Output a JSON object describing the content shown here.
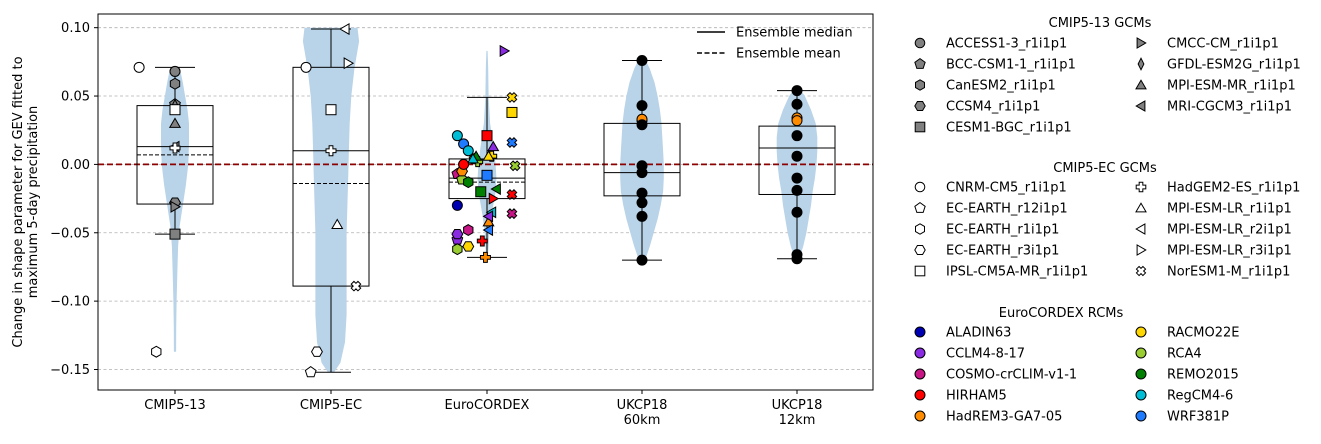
{
  "chart_data": {
    "type": "box-violin",
    "ylabel": "Change in shape parameter for GEV fitted to maximum 5-day precipitation",
    "ylabel_lines": [
      "Change in shape parameter for GEV fitted to",
      "maximum 5-day precipitation"
    ],
    "ylim": [
      -0.165,
      0.11
    ],
    "yticks": [
      -0.15,
      -0.1,
      -0.05,
      0.0,
      0.05,
      0.1
    ],
    "ytick_labels": [
      "−0.15",
      "−0.10",
      "−0.05",
      "0.00",
      "0.05",
      "0.10"
    ],
    "grid": "horizontal-dashed",
    "reference_line": {
      "y": 0.0,
      "color": "#8b0000",
      "style": "dashed"
    },
    "violin_color": "#b9d3e8",
    "ensemble_legend": {
      "position": "top-right",
      "entries": [
        {
          "label": "Ensemble median",
          "style": "solid"
        },
        {
          "label": "Ensemble mean",
          "style": "dashed"
        }
      ]
    },
    "groups": [
      {
        "category": "CMIP5-13",
        "label_lines": [
          "CMIP5-13"
        ],
        "box": {
          "q1": -0.029,
          "median": 0.013,
          "q3": 0.043,
          "mean": 0.007,
          "whisker_low": -0.051,
          "whisker_high": 0.071
        },
        "violin": [
          [
            0.071,
            0.03
          ],
          [
            0.06,
            0.05
          ],
          [
            0.05,
            0.065
          ],
          [
            0.04,
            0.08
          ],
          [
            0.03,
            0.09
          ],
          [
            0.015,
            0.09
          ],
          [
            0.0,
            0.085
          ],
          [
            -0.015,
            0.07
          ],
          [
            -0.03,
            0.05
          ],
          [
            -0.045,
            0.03
          ],
          [
            -0.06,
            0.02
          ],
          [
            -0.08,
            0.015
          ],
          [
            -0.1,
            0.01
          ],
          [
            -0.12,
            0.008
          ],
          [
            -0.137,
            0.007
          ]
        ],
        "points": [
          {
            "model": "ACCESS1-3_r1i1p1",
            "y": 0.068,
            "dx": 0.0
          },
          {
            "model": "BCC-CSM1-1_r1i1p1",
            "y": 0.044,
            "dx": 0.0
          },
          {
            "model": "CanESM2_r1i1p1",
            "y": 0.059,
            "dx": 0.0
          },
          {
            "model": "CCSM4_r1i1p1",
            "y": -0.028,
            "dx": 0.0
          },
          {
            "model": "CESM1-BGC_r1i1p1",
            "y": -0.051,
            "dx": 0.0
          },
          {
            "model": "CMCC-CM_r1i1p1",
            "y": -0.031,
            "dx": 0.0
          },
          {
            "model": "GFDL-ESM2G_r1i1p1",
            "y": 0.043,
            "dx": 0.0
          },
          {
            "model": "MPI-ESM-MR_r1i1p1",
            "y": 0.03,
            "dx": 0.0
          },
          {
            "model": "MRI-CGCM3_r1i1p1",
            "y": 0.013,
            "dx": 0.0
          },
          {
            "model": "CNRM-CM5_r1i1p1",
            "y": 0.071,
            "dx": -0.23
          },
          {
            "model": "EC-EARTH_r1i1p1",
            "y": -0.137,
            "dx": -0.12
          },
          {
            "model": "IPSL-CM5A-MR_r1i1p1",
            "y": 0.04,
            "dx": 0.0
          },
          {
            "model": "HadGEM2-ES_r1i1p1",
            "y": 0.012,
            "dx": 0.0
          }
        ]
      },
      {
        "category": "CMIP5-EC",
        "label_lines": [
          "CMIP5-EC"
        ],
        "box": {
          "q1": -0.089,
          "median": 0.01,
          "q3": 0.071,
          "mean": -0.014,
          "whisker_low": -0.152,
          "whisker_high": 0.099
        },
        "violin": [
          [
            0.1,
            0.17
          ],
          [
            0.09,
            0.18
          ],
          [
            0.07,
            0.15
          ],
          [
            0.05,
            0.13
          ],
          [
            0.03,
            0.12
          ],
          [
            0.01,
            0.115
          ],
          [
            -0.01,
            0.11
          ],
          [
            -0.03,
            0.105
          ],
          [
            -0.05,
            0.1
          ],
          [
            -0.07,
            0.1
          ],
          [
            -0.09,
            0.1
          ],
          [
            -0.11,
            0.1
          ],
          [
            -0.13,
            0.09
          ],
          [
            -0.145,
            0.06
          ],
          [
            -0.152,
            0.02
          ]
        ],
        "points": [
          {
            "model": "CNRM-CM5_r1i1p1",
            "y": 0.071,
            "dx": -0.16
          },
          {
            "model": "EC-EARTH_r12i1p1",
            "y": -0.152,
            "dx": -0.13
          },
          {
            "model": "EC-EARTH_r3i1p1",
            "y": -0.137,
            "dx": -0.09
          },
          {
            "model": "IPSL-CM5A-MR_r1i1p1",
            "y": 0.04,
            "dx": 0.0
          },
          {
            "model": "HadGEM2-ES_r1i1p1",
            "y": 0.01,
            "dx": 0.0
          },
          {
            "model": "MPI-ESM-LR_r1i1p1",
            "y": -0.044,
            "dx": 0.04
          },
          {
            "model": "MPI-ESM-LR_r2i1p1",
            "y": 0.099,
            "dx": 0.09
          },
          {
            "model": "MPI-ESM-LR_r3i1p1",
            "y": 0.074,
            "dx": 0.11
          },
          {
            "model": "NorESM1-M_r1i1p1",
            "y": -0.089,
            "dx": 0.16
          }
        ]
      },
      {
        "category": "EuroCORDEX",
        "label_lines": [
          "EuroCORDEX"
        ],
        "box": {
          "q1": -0.025,
          "median": -0.01,
          "q3": 0.004,
          "mean": -0.013,
          "whisker_low": -0.068,
          "whisker_high": 0.049
        },
        "violin": [
          [
            0.083,
            0.004
          ],
          [
            0.07,
            0.008
          ],
          [
            0.05,
            0.01
          ],
          [
            0.03,
            0.02
          ],
          [
            0.01,
            0.045
          ],
          [
            0.0,
            0.055
          ],
          [
            -0.01,
            0.06
          ],
          [
            -0.02,
            0.055
          ],
          [
            -0.03,
            0.04
          ],
          [
            -0.04,
            0.025
          ],
          [
            -0.05,
            0.015
          ],
          [
            -0.06,
            0.01
          ],
          [
            -0.068,
            0.005
          ]
        ],
        "points": [
          {
            "rcm": "ALADIN63",
            "gcm": "CNRM-CM5_r1i1p1",
            "y": -0.03,
            "dx": -0.19
          },
          {
            "rcm": "RegCM4-6",
            "gcm": "CNRM-CM5_r1i1p1",
            "y": 0.021,
            "dx": -0.19
          },
          {
            "rcm": "WRF381P",
            "gcm": "CNRM-CM5_r1i1p1",
            "y": 0.015,
            "dx": -0.15
          },
          {
            "rcm": "RegCM4-6",
            "gcm": "CNRM-CM5_r1i1p1",
            "y": 0.01,
            "dx": -0.12
          },
          {
            "rcm": "COSMO-crCLIM-v1-1",
            "gcm": "EC-EARTH_r12i1p1",
            "y": -0.007,
            "dx": -0.19
          },
          {
            "rcm": "RCA4",
            "gcm": "EC-EARTH_r12i1p1",
            "y": -0.011,
            "dx": -0.16
          },
          {
            "rcm": "RCMO22E",
            "gcm": "EC-EARTH_r12i1p1",
            "y": 0.004,
            "dx": -0.08
          },
          {
            "rcm": "REMO2015",
            "gcm": "EC-EARTH_r1i1p1",
            "y": -0.013,
            "dx": -0.12
          },
          {
            "rcm": "HadREM3-GA7-05",
            "gcm": "EC-EARTH_r3i1p1",
            "y": -0.005,
            "dx": -0.16
          },
          {
            "rcm": "CCLM4-8-17",
            "gcm": "EC-EARTH_r12i1p1",
            "y": -0.055,
            "dx": -0.19
          },
          {
            "rcm": "CCLM4-8-17",
            "gcm": "EC-EARTH_r3i1p1",
            "y": -0.051,
            "dx": -0.19
          },
          {
            "rcm": "COSMO-crCLIM-v1-1",
            "gcm": "EC-EARTH_r1i1p1",
            "y": -0.048,
            "dx": -0.12
          },
          {
            "rcm": "RCA4",
            "gcm": "EC-EARTH_r1i1p1",
            "y": -0.062,
            "dx": -0.19
          },
          {
            "rcm": "RCMO22E",
            "gcm": "EC-EARTH_r3i1p1",
            "y": -0.06,
            "dx": -0.12
          },
          {
            "rcm": "HIRHAM5",
            "gcm": "HadGEM2-ES_r1i1p1",
            "y": -0.056,
            "dx": -0.03
          },
          {
            "rcm": "HadREM3-GA7-05",
            "gcm": "HadGEM2-ES_r1i1p1",
            "y": -0.068,
            "dx": -0.01
          },
          {
            "rcm": "REMO2015",
            "gcm": "IPSL-CM5A-MR_r1i1p1",
            "y": -0.02,
            "dx": -0.04
          },
          {
            "rcm": "HIRHAM5",
            "gcm": "IPSL-CM5A-MR_r1i1p1",
            "y": 0.021,
            "dx": 0.0
          },
          {
            "rcm": "WRF381P",
            "gcm": "IPSL-CM5A-MR_r1i1p1",
            "y": -0.008,
            "dx": 0.0
          },
          {
            "rcm": "RCMO22E",
            "gcm": "HadGEM2-ES_r1i1p1",
            "y": 0.006,
            "dx": 0.03
          },
          {
            "rcm": "RCA4",
            "gcm": "HadGEM2-ES_r1i1p1",
            "y": 0.002,
            "dx": -0.06
          },
          {
            "rcm": "REMO2015",
            "gcm": "MPI-ESM-LR_r1i1p1",
            "y": 0.006,
            "dx": -0.07
          },
          {
            "rcm": "RegCM4-6",
            "gcm": "MPI-ESM-LR_r1i1p1",
            "y": 0.004,
            "dx": -0.09
          },
          {
            "rcm": "CCLM4-8-17",
            "gcm": "MPI-ESM-LR_r1i1p1",
            "y": 0.013,
            "dx": 0.04
          },
          {
            "rcm": "RCMO22E",
            "gcm": "MPI-ESM-LR_r1i1p1",
            "y": 0.006,
            "dx": 0.01
          },
          {
            "rcm": "HadREM3-GA7-05",
            "gcm": "MPI-ESM-LR_r1i1p1",
            "y": -0.042,
            "dx": 0.01
          },
          {
            "rcm": "REMO2015",
            "gcm": "MPI-ESM-LR_r2i1p1",
            "y": -0.018,
            "dx": 0.06
          },
          {
            "rcm": "RegCM4-6",
            "gcm": "MPI-ESM-LR_r2i1p1",
            "y": -0.035,
            "dx": 0.03
          },
          {
            "rcm": "CCLM4-8-17",
            "gcm": "MPI-ESM-LR_r2i1p1",
            "y": -0.038,
            "dx": 0.01
          },
          {
            "rcm": "WRF381P",
            "gcm": "MPI-ESM-LR_r2i1p1",
            "y": -0.048,
            "dx": 0.01
          },
          {
            "rcm": "HIRHAM5",
            "gcm": "MPI-ESM-LR_r3i1p1",
            "y": -0.025,
            "dx": 0.04
          },
          {
            "rcm": "CCLM4-8-17",
            "gcm": "MPI-ESM-LR_r3i1p1",
            "y": 0.083,
            "dx": 0.11
          },
          {
            "rcm": "RCMO22E",
            "gcm": "NorESM1-M_r1i1p1",
            "y": 0.049,
            "dx": 0.16
          },
          {
            "rcm": "RCMO22E",
            "gcm": "IPSL-CM5A-MR_r1i1p1",
            "y": 0.038,
            "dx": 0.16
          },
          {
            "rcm": "WRF381P",
            "gcm": "NorESM1-M_r1i1p1",
            "y": 0.016,
            "dx": 0.16
          },
          {
            "rcm": "RCA4",
            "gcm": "NorESM1-M_r1i1p1",
            "y": -0.001,
            "dx": 0.18
          },
          {
            "rcm": "HIRHAM5",
            "gcm": "NorESM1-M_r1i1p1",
            "y": -0.022,
            "dx": 0.16
          },
          {
            "rcm": "COSMO-crCLIM-v1-1",
            "gcm": "NorESM1-M_r1i1p1",
            "y": -0.036,
            "dx": 0.16
          },
          {
            "rcm": "HIRHAM5",
            "gcm": "CNRM-CM5_r1i1p1",
            "y": 0.0,
            "dx": -0.15
          }
        ]
      },
      {
        "category": "UKCP18 60km",
        "label_lines": [
          "UKCP18",
          "60km"
        ],
        "box": {
          "q1": -0.023,
          "median": -0.006,
          "q3": 0.03,
          "whisker_low": -0.07,
          "whisker_high": 0.076
        },
        "violin": [
          [
            0.077,
            0.02
          ],
          [
            0.07,
            0.05
          ],
          [
            0.06,
            0.08
          ],
          [
            0.05,
            0.1
          ],
          [
            0.04,
            0.115
          ],
          [
            0.03,
            0.125
          ],
          [
            0.02,
            0.13
          ],
          [
            0.01,
            0.135
          ],
          [
            0.0,
            0.14
          ],
          [
            -0.01,
            0.14
          ],
          [
            -0.02,
            0.135
          ],
          [
            -0.03,
            0.12
          ],
          [
            -0.04,
            0.1
          ],
          [
            -0.05,
            0.075
          ],
          [
            -0.06,
            0.05
          ],
          [
            -0.07,
            0.02
          ]
        ],
        "points": [
          {
            "rcm": "",
            "y": 0.076
          },
          {
            "rcm": "",
            "y": 0.043
          },
          {
            "rcm": "",
            "y": 0.032
          },
          {
            "rcm": "HadREM3-GA7-05",
            "y": 0.033
          },
          {
            "rcm": "",
            "y": 0.029
          },
          {
            "rcm": "",
            "y": -0.001
          },
          {
            "rcm": "",
            "y": -0.006
          },
          {
            "rcm": "",
            "y": -0.021
          },
          {
            "rcm": "",
            "y": -0.028
          },
          {
            "rcm": "",
            "y": -0.038
          },
          {
            "rcm": "",
            "y": -0.07
          }
        ]
      },
      {
        "category": "UKCP18 12km",
        "label_lines": [
          "UKCP18",
          "12km"
        ],
        "box": {
          "q1": -0.022,
          "median": 0.012,
          "q3": 0.028,
          "whisker_low": -0.069,
          "whisker_high": 0.054
        },
        "violin": [
          [
            0.055,
            0.02
          ],
          [
            0.05,
            0.05
          ],
          [
            0.04,
            0.09
          ],
          [
            0.03,
            0.12
          ],
          [
            0.02,
            0.13
          ],
          [
            0.01,
            0.13
          ],
          [
            0.0,
            0.125
          ],
          [
            -0.01,
            0.115
          ],
          [
            -0.02,
            0.1
          ],
          [
            -0.03,
            0.09
          ],
          [
            -0.04,
            0.075
          ],
          [
            -0.05,
            0.06
          ],
          [
            -0.06,
            0.04
          ],
          [
            -0.069,
            0.015
          ]
        ],
        "points": [
          {
            "rcm": "",
            "y": 0.054
          },
          {
            "rcm": "",
            "y": 0.044
          },
          {
            "rcm": "HadREM3-GA7-05",
            "y": 0.034
          },
          {
            "rcm": "HadREM3-GA7-05",
            "y": 0.032
          },
          {
            "rcm": "",
            "y": 0.021
          },
          {
            "rcm": "",
            "y": 0.006
          },
          {
            "rcm": "",
            "y": -0.01
          },
          {
            "rcm": "",
            "y": -0.019
          },
          {
            "rcm": "",
            "y": -0.035
          },
          {
            "rcm": "",
            "y": -0.066
          },
          {
            "rcm": "",
            "y": -0.069
          }
        ]
      }
    ]
  },
  "legend": {
    "cmip5_13": {
      "title": "CMIP5-13 GCMs",
      "entries": [
        {
          "label": "ACCESS1-3_r1i1p1",
          "marker": "circle"
        },
        {
          "label": "CMCC-CM_r1i1p1",
          "marker": "triangle-right"
        },
        {
          "label": "BCC-CSM1-1_r1i1p1",
          "marker": "pentagon"
        },
        {
          "label": "GFDL-ESM2G_r1i1p1",
          "marker": "thin-diamond"
        },
        {
          "label": "CanESM2_r1i1p1",
          "marker": "hexagon"
        },
        {
          "label": "MPI-ESM-MR_r1i1p1",
          "marker": "triangle-up"
        },
        {
          "label": "CCSM4_r1i1p1",
          "marker": "hexagon2"
        },
        {
          "label": "MRI-CGCM3_r1i1p1",
          "marker": "triangle-left"
        },
        {
          "label": "CESM1-BGC_r1i1p1",
          "marker": "square"
        }
      ]
    },
    "cmip5_ec": {
      "title": "CMIP5-EC GCMs",
      "entries": [
        {
          "label": "CNRM-CM5_r1i1p1",
          "marker": "circle"
        },
        {
          "label": "HadGEM2-ES_r1i1p1",
          "marker": "plus"
        },
        {
          "label": "EC-EARTH_r12i1p1",
          "marker": "pentagon"
        },
        {
          "label": "MPI-ESM-LR_r1i1p1",
          "marker": "triangle-up"
        },
        {
          "label": "EC-EARTH_r1i1p1",
          "marker": "hexagon"
        },
        {
          "label": "MPI-ESM-LR_r2i1p1",
          "marker": "triangle-left"
        },
        {
          "label": "EC-EARTH_r3i1p1",
          "marker": "hexagon2"
        },
        {
          "label": "MPI-ESM-LR_r3i1p1",
          "marker": "triangle-right"
        },
        {
          "label": "IPSL-CM5A-MR_r1i1p1",
          "marker": "square"
        },
        {
          "label": "NorESM1-M_r1i1p1",
          "marker": "x"
        }
      ]
    },
    "eurocordex": {
      "title": "EuroCORDEX RCMs",
      "entries": [
        {
          "label": "ALADIN63",
          "color": "#0000b3"
        },
        {
          "label": "RACMO22E",
          "color": "#ffd700"
        },
        {
          "label": "CCLM4-8-17",
          "color": "#8a2be2"
        },
        {
          "label": "RCA4",
          "color": "#9acd32"
        },
        {
          "label": "COSMO-crCLIM-v1-1",
          "color": "#c71585"
        },
        {
          "label": "REMO2015",
          "color": "#008000"
        },
        {
          "label": "HIRHAM5",
          "color": "#ff0000"
        },
        {
          "label": "RegCM4-6",
          "color": "#00bcd4"
        },
        {
          "label": "HadREM3-GA7-05",
          "color": "#ff8c00"
        },
        {
          "label": "WRF381P",
          "color": "#1e7bff"
        }
      ]
    }
  },
  "colors": {
    "cmip5_13_marker": "#808080",
    "cmip5_ec_marker": "#ffffff",
    "ukcp_marker": "#000000",
    "violin": "#b9d3e8"
  }
}
